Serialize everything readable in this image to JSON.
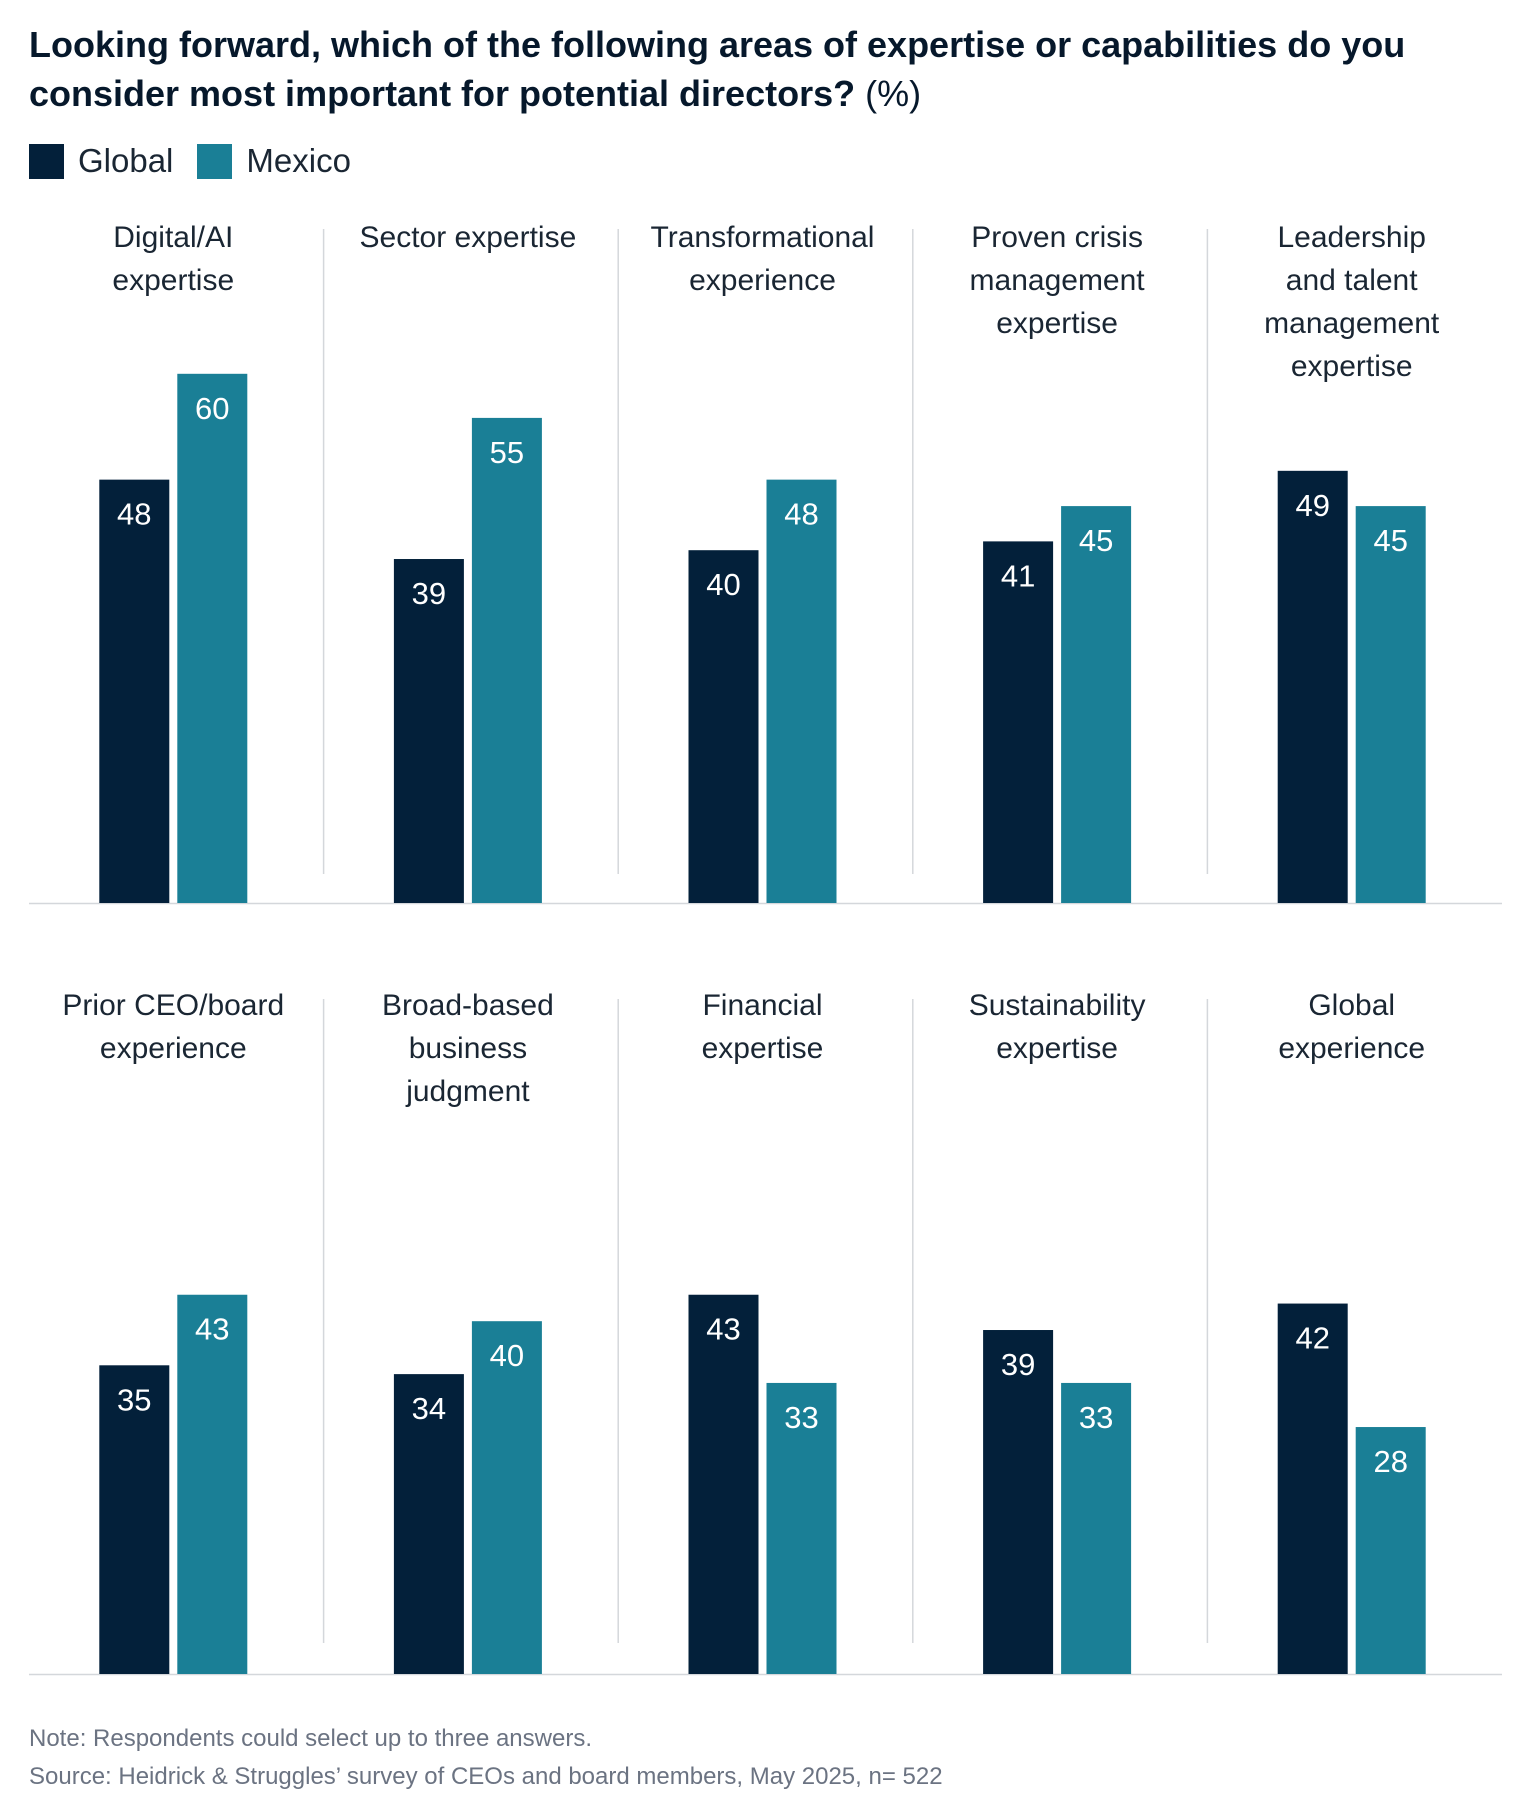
{
  "chart_data": {
    "type": "bar",
    "title": "Looking forward, which of the following areas of expertise or capabilities do you consider most important for potential directors?",
    "title_unit": "(%)",
    "categories": [
      [
        "Digital/AI",
        "expertise"
      ],
      [
        "Sector expertise"
      ],
      [
        "Transformational",
        "experience"
      ],
      [
        "Proven crisis",
        "management",
        "expertise"
      ],
      [
        "Leadership",
        "and talent",
        "management",
        "expertise"
      ],
      [
        "Prior CEO/board",
        "experience"
      ],
      [
        "Broad-based",
        "business",
        "judgment"
      ],
      [
        "Financial",
        "expertise"
      ],
      [
        "Sustainability",
        "expertise"
      ],
      [
        "Global",
        "experience"
      ]
    ],
    "series": [
      {
        "name": "Global",
        "color": "#03203a",
        "values": [
          48,
          39,
          40,
          41,
          49,
          35,
          34,
          43,
          39,
          42
        ]
      },
      {
        "name": "Mexico",
        "color": "#1a7f96",
        "values": [
          60,
          55,
          48,
          45,
          45,
          43,
          40,
          33,
          33,
          28
        ]
      }
    ],
    "layout": "small multiples, 2 rows x 5 panels",
    "ylim": [
      0,
      60
    ],
    "grid": false,
    "data_labels": true,
    "legend": "top-left"
  },
  "notes": {
    "note": "Note: Respondents could select up to three answers.",
    "source": "Source: Heidrick & Struggles’ survey of CEOs and board members, May 2025, n= 522"
  }
}
